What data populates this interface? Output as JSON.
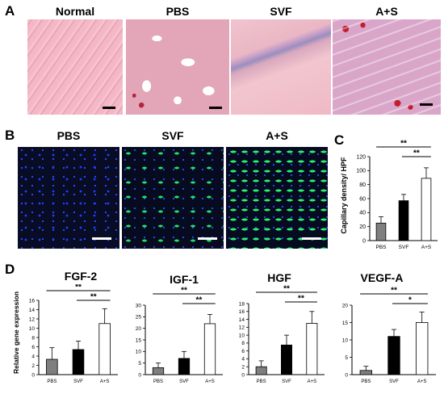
{
  "panel_a": {
    "label": "A",
    "titles": [
      "Normal",
      "PBS",
      "SVF",
      "A+S"
    ]
  },
  "panel_b": {
    "label": "B",
    "titles": [
      "PBS",
      "SVF",
      "A+S"
    ]
  },
  "panel_c": {
    "label": "C",
    "ylabel": "Capillary density/ HPF"
  },
  "panel_d": {
    "label": "D",
    "ylabel": "Relative gene expression",
    "titles": [
      "FGF-2",
      "IGF-1",
      "HGF",
      "VEGF-A"
    ]
  },
  "colors": {
    "pbs": "#7f7f7f",
    "svf": "#000000",
    "as": "#ffffff"
  },
  "chart_data": [
    {
      "id": "capillary",
      "type": "bar",
      "title": "",
      "xlabel": "",
      "ylabel": "Capillary density/ HPF",
      "categories": [
        "PBS",
        "SVF",
        "A+S"
      ],
      "values": [
        25,
        57,
        89
      ],
      "errors": [
        9,
        9,
        15
      ],
      "ylim": [
        0,
        120
      ],
      "yticks": [
        0,
        20,
        40,
        60,
        80,
        100,
        120
      ],
      "significance": [
        {
          "from": 0,
          "to": 2,
          "label": "**"
        },
        {
          "from": 1,
          "to": 2,
          "label": "**"
        }
      ]
    },
    {
      "id": "fgf2",
      "type": "bar",
      "title": "FGF-2",
      "xlabel": "",
      "ylabel": "Relative gene expression",
      "categories": [
        "PBS",
        "SVF",
        "A+S"
      ],
      "values": [
        3.3,
        5.4,
        11
      ],
      "errors": [
        2.5,
        1.8,
        3.2
      ],
      "ylim": [
        0,
        16
      ],
      "yticks": [
        0,
        2,
        4,
        6,
        8,
        10,
        12,
        14,
        16
      ],
      "significance": [
        {
          "from": 0,
          "to": 2,
          "label": "**"
        },
        {
          "from": 1,
          "to": 2,
          "label": "**"
        }
      ]
    },
    {
      "id": "igf1",
      "type": "bar",
      "title": "IGF-1",
      "xlabel": "",
      "ylabel": "",
      "categories": [
        "PBS",
        "SVF",
        "A+S"
      ],
      "values": [
        3,
        7,
        22
      ],
      "errors": [
        2,
        3,
        4
      ],
      "ylim": [
        0,
        30
      ],
      "yticks": [
        0,
        5,
        10,
        15,
        20,
        25,
        30
      ],
      "significance": [
        {
          "from": 0,
          "to": 2,
          "label": "**"
        },
        {
          "from": 1,
          "to": 2,
          "label": "**"
        }
      ]
    },
    {
      "id": "hgf",
      "type": "bar",
      "title": "HGF",
      "xlabel": "",
      "ylabel": "",
      "categories": [
        "PBS",
        "SVF",
        "A+S"
      ],
      "values": [
        2,
        7.5,
        13
      ],
      "errors": [
        1.5,
        2.5,
        3
      ],
      "ylim": [
        0,
        18
      ],
      "yticks": [
        0,
        2,
        4,
        6,
        8,
        10,
        12,
        14,
        16,
        18
      ],
      "significance": [
        {
          "from": 0,
          "to": 2,
          "label": "**"
        },
        {
          "from": 1,
          "to": 2,
          "label": "**"
        }
      ]
    },
    {
      "id": "vegfa",
      "type": "bar",
      "title": "VEGF-A",
      "xlabel": "",
      "ylabel": "",
      "categories": [
        "PBS",
        "SVF",
        "A+S"
      ],
      "values": [
        1.2,
        11,
        15
      ],
      "errors": [
        1.2,
        2,
        3
      ],
      "ylim": [
        0,
        20
      ],
      "yticks": [
        0,
        5,
        10,
        15,
        20
      ],
      "significance": [
        {
          "from": 0,
          "to": 2,
          "label": "**"
        },
        {
          "from": 1,
          "to": 2,
          "label": "*"
        }
      ]
    }
  ]
}
